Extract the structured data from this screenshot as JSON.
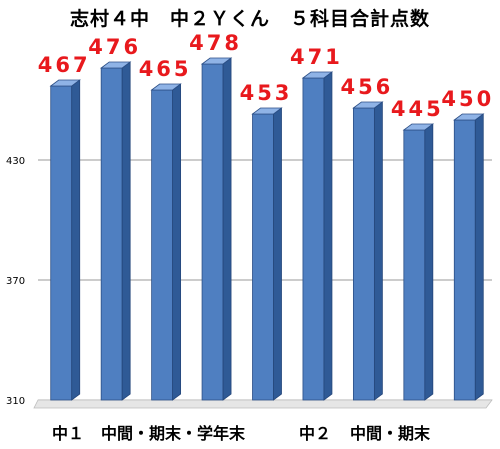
{
  "chart_data": {
    "type": "bar",
    "title": "志村４中　中２Ｙくん　５科目合計点数",
    "values": [
      467,
      476,
      465,
      478,
      453,
      471,
      456,
      445,
      450
    ],
    "ylim": [
      310,
      490
    ],
    "yticks": [
      "310",
      "370",
      "430"
    ],
    "grid": true,
    "group_labels": [
      "中１",
      "中間・期末・学年末",
      "中２",
      "中間・期末"
    ],
    "bar_color": "#4f7fc1",
    "label_color": "#e8191d"
  }
}
